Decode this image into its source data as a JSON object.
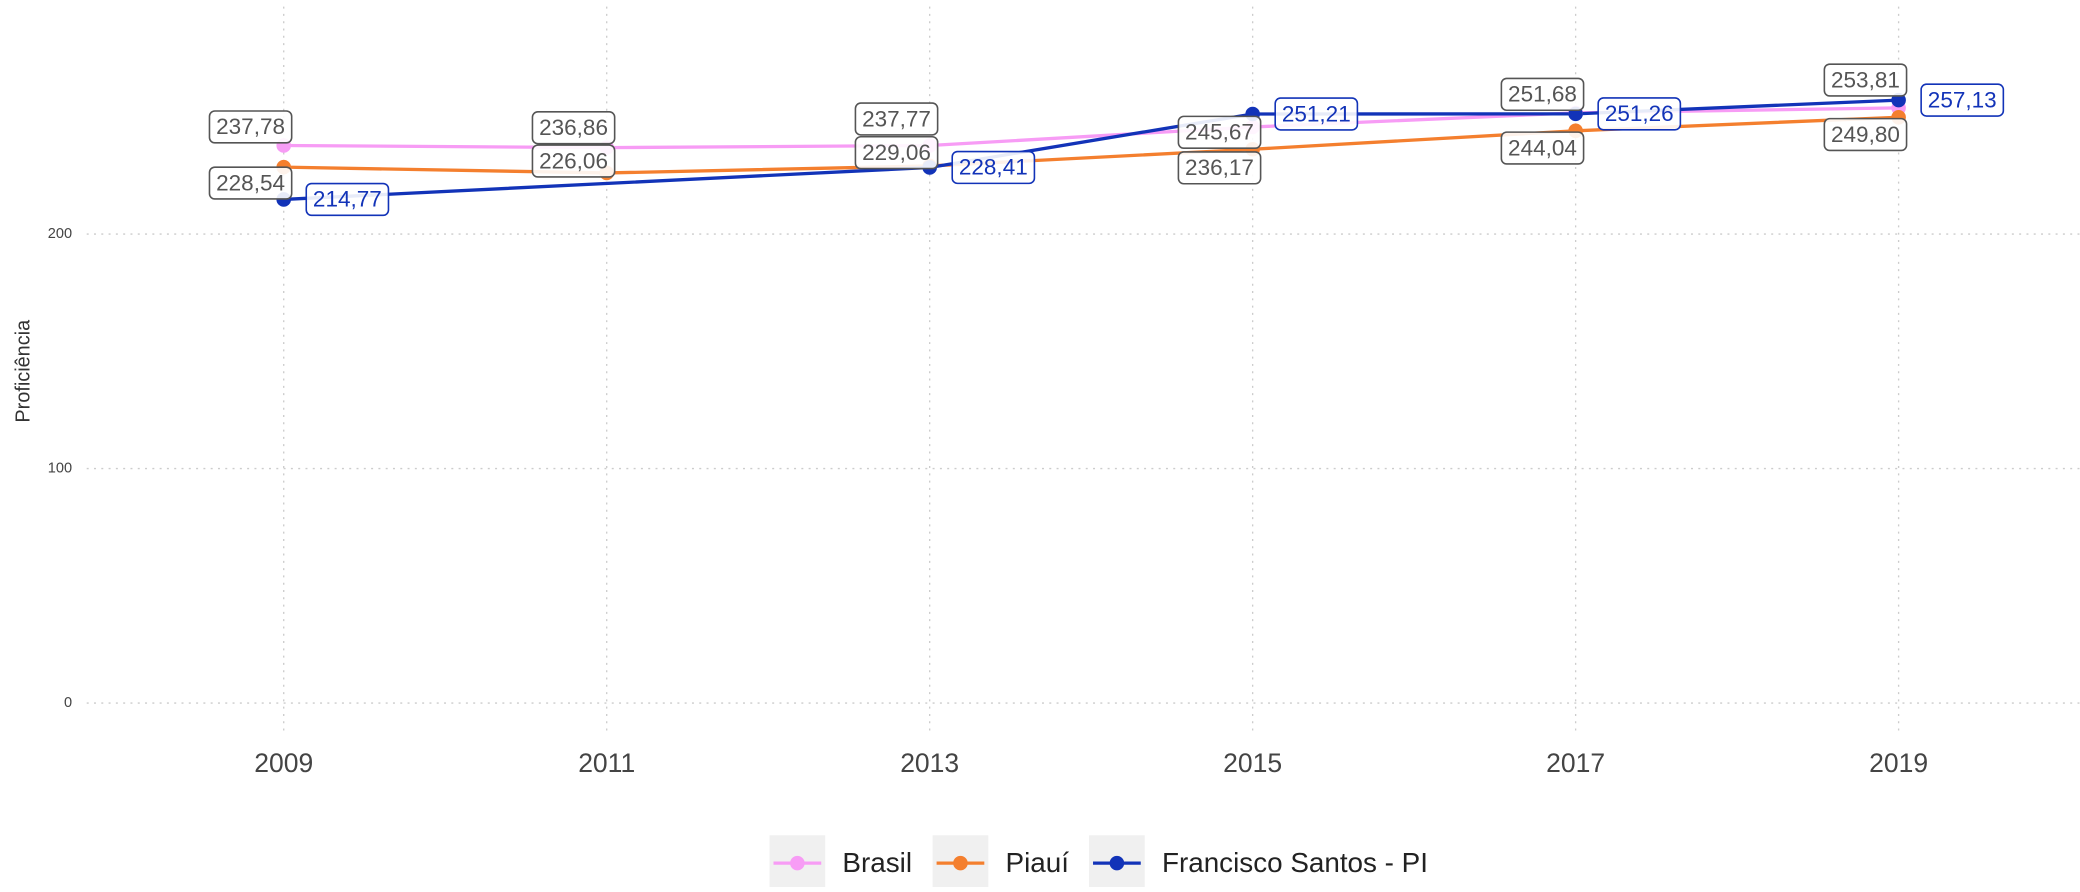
{
  "chart_data": {
    "type": "line",
    "y_label": "Proficiência",
    "x": [
      2009,
      2011,
      2013,
      2015,
      2017,
      2019
    ],
    "xlim": [
      2007.78,
      2020.12
    ],
    "xticks": [
      2009,
      2011,
      2013,
      2015,
      2017,
      2019
    ],
    "ylim": [
      -14,
      297
    ],
    "yticks": [
      0,
      100,
      200
    ],
    "grid": true,
    "legend": "bottom",
    "series": [
      {
        "name": "Brasil",
        "color": "#f79cf5",
        "x": [
          2009,
          2011,
          2013,
          2015,
          2017,
          2019
        ],
        "values": [
          237.78,
          236.86,
          237.77,
          245.67,
          251.68,
          253.81
        ],
        "value_labels": [
          "237,78",
          "236,86",
          "237,77",
          "245,67",
          "251,68",
          "253,81"
        ]
      },
      {
        "name": "Piauí",
        "color": "#f47f2e",
        "x": [
          2009,
          2011,
          2013,
          2015,
          2017,
          2019
        ],
        "values": [
          228.54,
          226.06,
          229.06,
          236.17,
          244.04,
          249.8
        ],
        "value_labels": [
          "228,54",
          "226,06",
          "229,06",
          "236,17",
          "244,04",
          "249,80"
        ]
      },
      {
        "name": "Francisco Santos - PI",
        "color": "#1233b8",
        "x": [
          2009,
          2013,
          2015,
          2017,
          2019
        ],
        "values": [
          214.77,
          228.41,
          251.21,
          251.26,
          257.13
        ],
        "value_labels": [
          "214,77",
          "228,41",
          "251,21",
          "251,26",
          "257,13"
        ]
      }
    ]
  }
}
